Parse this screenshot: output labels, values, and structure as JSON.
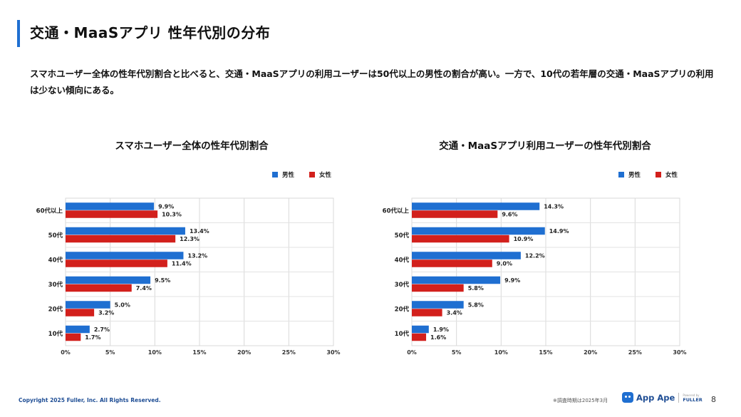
{
  "slide": {
    "title": "交通・MaaSアプリ 性年代別の分布",
    "description": "スマホユーザー全体の性年代別割合と比べると、交通・MaaSアプリの利用ユーザーは50代以上の男性の割合が高い。一方で、10代の若年層の交通・MaaSアプリの利用は少ない傾向にある。"
  },
  "colors": {
    "male": "#1f6fd1",
    "female": "#d2201c",
    "accent": "#1f6fd1"
  },
  "chart_data": [
    {
      "type": "bar",
      "orientation": "horizontal",
      "title": "スマホユーザー全体の性年代別割合",
      "categories": [
        "60代以上",
        "50代",
        "40代",
        "30代",
        "20代",
        "10代"
      ],
      "series": [
        {
          "name": "男性",
          "values": [
            9.9,
            13.4,
            13.2,
            9.5,
            5.0,
            2.7
          ],
          "labels": [
            "9.9%",
            "13.4%",
            "13.2%",
            "9.5%",
            "5.0%",
            "2.7%"
          ]
        },
        {
          "name": "女性",
          "values": [
            10.3,
            12.3,
            11.4,
            7.4,
            3.2,
            1.7
          ],
          "labels": [
            "10.3%",
            "12.3%",
            "11.4%",
            "7.4%",
            "3.2%",
            "1.7%"
          ]
        }
      ],
      "xlim": [
        0,
        30
      ],
      "xticks": [
        "0%",
        "5%",
        "10%",
        "15%",
        "20%",
        "25%",
        "30%"
      ],
      "legend": "top-right",
      "grid": true
    },
    {
      "type": "bar",
      "orientation": "horizontal",
      "title": "交通・MaaSアプリ利用ユーザーの性年代別割合",
      "categories": [
        "60代以上",
        "50代",
        "40代",
        "30代",
        "20代",
        "10代"
      ],
      "series": [
        {
          "name": "男性",
          "values": [
            14.3,
            14.9,
            12.2,
            9.9,
            5.8,
            1.9
          ],
          "labels": [
            "14.3%",
            "14.9%",
            "12.2%",
            "9.9%",
            "5.8%",
            "1.9%"
          ]
        },
        {
          "name": "女性",
          "values": [
            9.6,
            10.9,
            9.0,
            5.8,
            3.4,
            1.6
          ],
          "labels": [
            "9.6%",
            "10.9%",
            "9.0%",
            "5.8%",
            "3.4%",
            "1.6%"
          ]
        }
      ],
      "xlim": [
        0,
        30
      ],
      "xticks": [
        "0%",
        "5%",
        "10%",
        "15%",
        "20%",
        "25%",
        "30%"
      ],
      "legend": "top-right",
      "grid": true
    }
  ],
  "footer": {
    "copyright": "Copyright 2025 Fuller, Inc. All Rights Reserved.",
    "note": "※調査時期は2025年3月",
    "brand": "App Ape",
    "powered_by": "Powered by",
    "company": "FULLER",
    "page": "8"
  }
}
